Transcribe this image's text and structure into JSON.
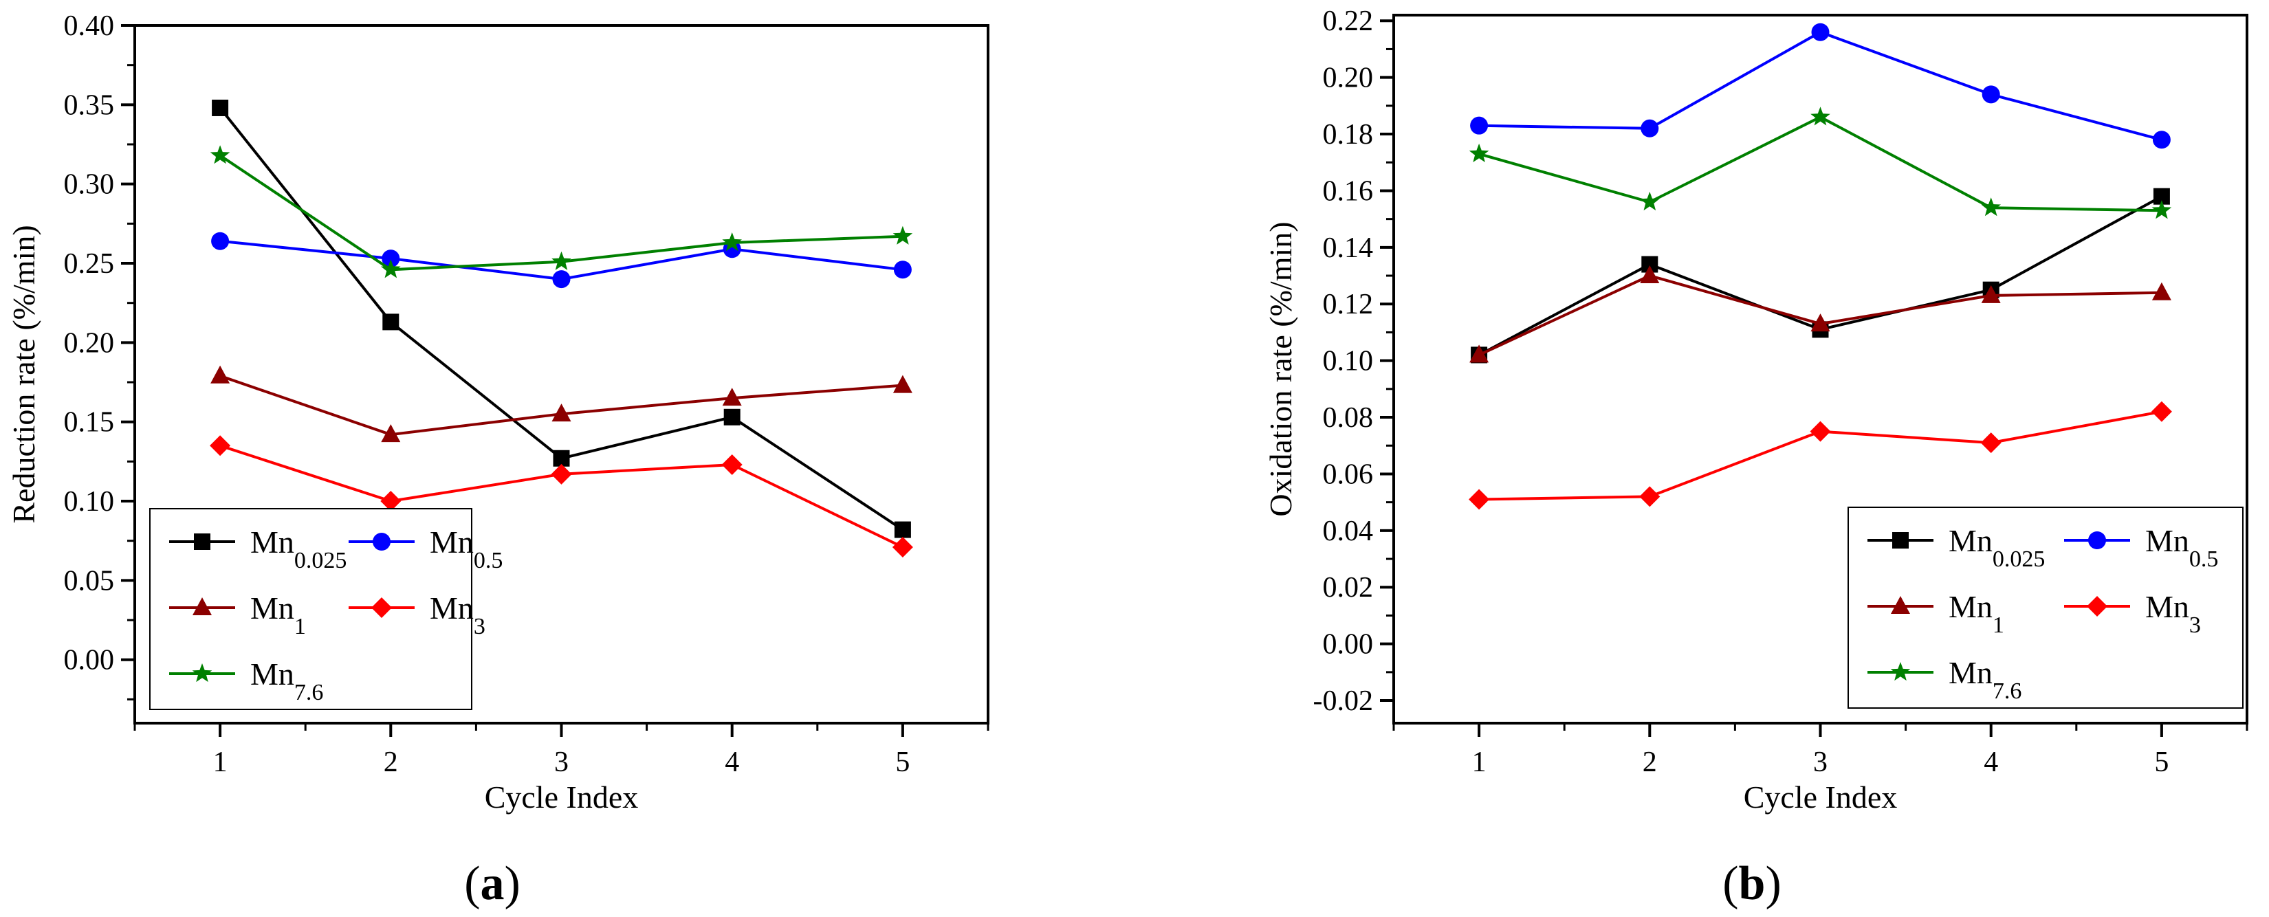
{
  "chart_data": [
    {
      "type": "line",
      "panel": "a",
      "caption_open": "(",
      "caption_letter": "a",
      "caption_close": ")",
      "xlabel": "Cycle Index",
      "ylabel": "Reduction rate (%/min)",
      "x": [
        1,
        2,
        3,
        4,
        5
      ],
      "xticks": [
        "1",
        "2",
        "3",
        "4",
        "5"
      ],
      "xlim": [
        0.5,
        5.5
      ],
      "ylim": [
        -0.04,
        0.4
      ],
      "yticks": [
        "0.00",
        "0.05",
        "0.10",
        "0.15",
        "0.20",
        "0.25",
        "0.30",
        "0.35",
        "0.40"
      ],
      "ytick_values": [
        0.0,
        0.05,
        0.1,
        0.15,
        0.2,
        0.25,
        0.3,
        0.35,
        0.4
      ],
      "legend_position": "bottom-left",
      "series": [
        {
          "name_base": "Mn",
          "name_sub": "0.025",
          "color": "#000000",
          "marker": "square",
          "values": [
            0.348,
            0.213,
            0.127,
            0.153,
            0.082
          ]
        },
        {
          "name_base": "Mn",
          "name_sub": "0.5",
          "color": "#0000ff",
          "marker": "circle",
          "values": [
            0.264,
            0.253,
            0.24,
            0.259,
            0.246
          ]
        },
        {
          "name_base": "Mn",
          "name_sub": "1",
          "color": "#8b0000",
          "marker": "triangle",
          "values": [
            0.179,
            0.142,
            0.155,
            0.165,
            0.173
          ]
        },
        {
          "name_base": "Mn",
          "name_sub": "3",
          "color": "#ff0000",
          "marker": "diamond",
          "values": [
            0.135,
            0.1,
            0.117,
            0.123,
            0.071
          ]
        },
        {
          "name_base": "Mn",
          "name_sub": "7.6",
          "color": "#008000",
          "marker": "star",
          "values": [
            0.318,
            0.246,
            0.251,
            0.263,
            0.267
          ]
        }
      ]
    },
    {
      "type": "line",
      "panel": "b",
      "caption_open": "(",
      "caption_letter": "b",
      "caption_close": ")",
      "xlabel": "Cycle Index",
      "ylabel": "Oxidation rate (%/min)",
      "x": [
        1,
        2,
        3,
        4,
        5
      ],
      "xticks": [
        "1",
        "2",
        "3",
        "4",
        "5"
      ],
      "xlim": [
        0.5,
        5.5
      ],
      "ylim": [
        -0.028,
        0.222
      ],
      "yticks": [
        "-0.02",
        "0.00",
        "0.02",
        "0.04",
        "0.06",
        "0.08",
        "0.10",
        "0.12",
        "0.14",
        "0.16",
        "0.18",
        "0.20",
        "0.22"
      ],
      "ytick_values": [
        -0.02,
        0.0,
        0.02,
        0.04,
        0.06,
        0.08,
        0.1,
        0.12,
        0.14,
        0.16,
        0.18,
        0.2,
        0.22
      ],
      "legend_position": "bottom-right",
      "series": [
        {
          "name_base": "Mn",
          "name_sub": "0.025",
          "color": "#000000",
          "marker": "square",
          "values": [
            0.102,
            0.134,
            0.111,
            0.125,
            0.158
          ]
        },
        {
          "name_base": "Mn",
          "name_sub": "0.5",
          "color": "#0000ff",
          "marker": "circle",
          "values": [
            0.183,
            0.182,
            0.216,
            0.194,
            0.178
          ]
        },
        {
          "name_base": "Mn",
          "name_sub": "1",
          "color": "#8b0000",
          "marker": "triangle",
          "values": [
            0.102,
            0.13,
            0.113,
            0.123,
            0.124
          ]
        },
        {
          "name_base": "Mn",
          "name_sub": "3",
          "color": "#ff0000",
          "marker": "diamond",
          "values": [
            0.051,
            0.052,
            0.075,
            0.071,
            0.082
          ]
        },
        {
          "name_base": "Mn",
          "name_sub": "7.6",
          "color": "#008000",
          "marker": "star",
          "values": [
            0.173,
            0.156,
            0.186,
            0.154,
            0.153
          ]
        }
      ]
    }
  ]
}
